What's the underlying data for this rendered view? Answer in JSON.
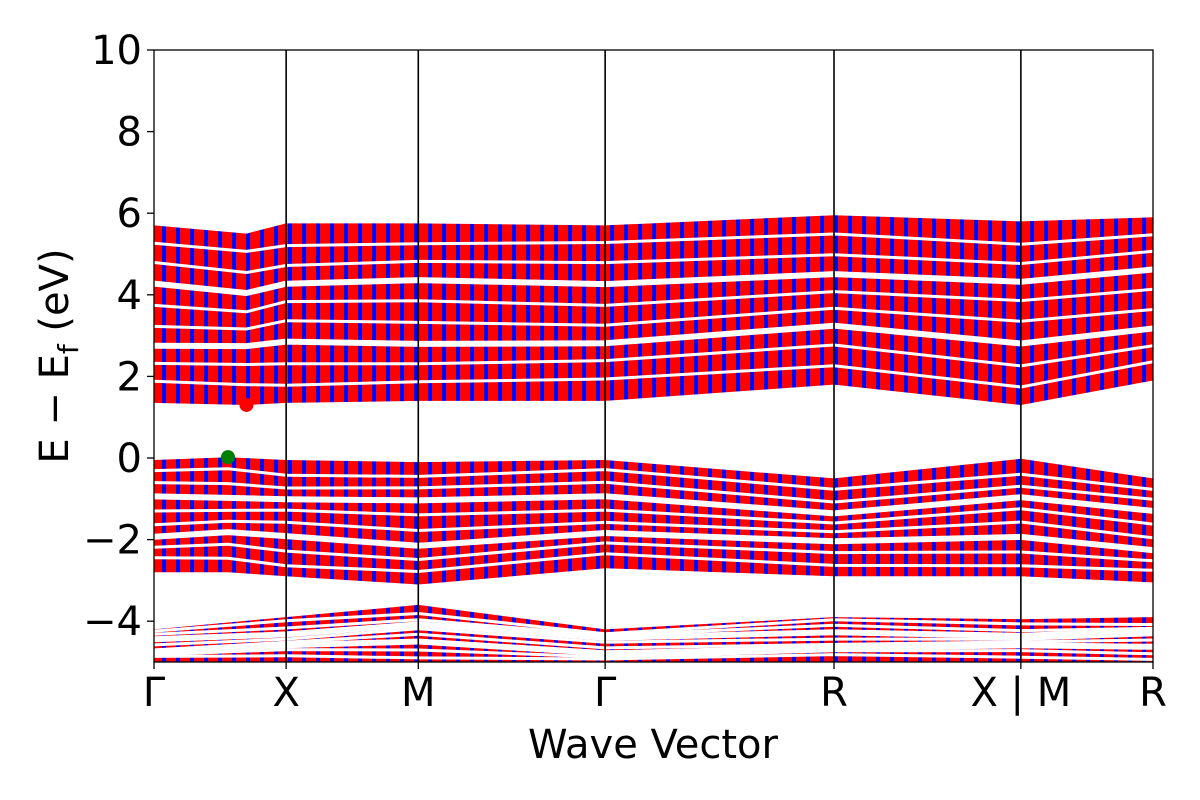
{
  "chart_data": {
    "type": "line",
    "title": "",
    "xlabel": "Wave Vector",
    "ylabel": "E − E_f (eV)",
    "ylabel_main": "E − E",
    "ylabel_sub": "f",
    "ylabel_unit": " (eV)",
    "ylim": [
      -5,
      10
    ],
    "yticks": [
      -4,
      -2,
      0,
      2,
      4,
      6,
      8,
      10
    ],
    "ytick_labels": [
      "−4",
      "−2",
      "0",
      "2",
      "4",
      "6",
      "8",
      "10"
    ],
    "grid": false,
    "legend": "none",
    "kpoints": [
      {
        "label": "Γ",
        "x": 0.0
      },
      {
        "label": "X",
        "x": 0.5
      },
      {
        "label": "M",
        "x": 1.0
      },
      {
        "label": "Γ",
        "x": 1.707
      },
      {
        "label": "R",
        "x": 2.573
      },
      {
        "label": "X | M",
        "x": 3.28
      },
      {
        "label": "R",
        "x": 3.78
      }
    ],
    "colors": {
      "band_primary": "#ff0000",
      "band_secondary": "#0000ff",
      "cbm_marker": "#ff0000",
      "vbm_marker": "#008000",
      "axis": "#000000"
    },
    "markers": [
      {
        "name": "CBM",
        "x": 0.35,
        "y": 1.3,
        "color": "#ff0000"
      },
      {
        "name": "VBM",
        "x": 0.28,
        "y": 0.02,
        "color": "#008000"
      }
    ],
    "bands": {
      "valence_lower": {
        "x": [
          0,
          0.5,
          1.0,
          1.707,
          2.573,
          3.28,
          3.78
        ],
        "top": [
          -4.2,
          -3.9,
          -3.6,
          -4.2,
          -3.9,
          -3.95,
          -3.9
        ],
        "bottom": [
          -5.0,
          -5.0,
          -5.0,
          -5.0,
          -5.0,
          -5.0,
          -5.0
        ]
      },
      "valence_upper": {
        "x": [
          0,
          0.28,
          0.5,
          1.0,
          1.707,
          2.573,
          3.28,
          3.78
        ],
        "top": [
          -0.05,
          0.02,
          -0.05,
          -0.1,
          -0.05,
          -0.5,
          -0.02,
          -0.5
        ],
        "bottom": [
          -2.8,
          -2.8,
          -2.9,
          -3.1,
          -2.7,
          -2.9,
          -2.9,
          -3.05
        ]
      },
      "conduction": {
        "x": [
          0,
          0.35,
          0.5,
          1.0,
          1.707,
          2.573,
          3.28,
          3.78
        ],
        "top": [
          5.7,
          5.5,
          5.75,
          5.75,
          5.7,
          5.95,
          5.8,
          5.9
        ],
        "bottom": [
          1.35,
          1.3,
          1.35,
          1.4,
          1.4,
          1.8,
          1.3,
          1.9
        ]
      }
    }
  }
}
